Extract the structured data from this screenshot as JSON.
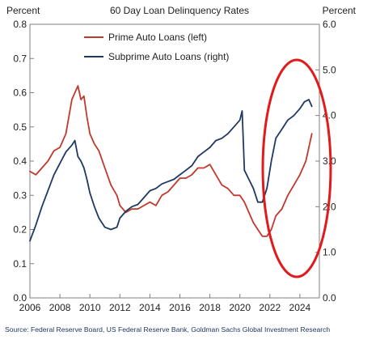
{
  "chart_data": {
    "type": "line",
    "title": "60 Day Loan Delinquency Rates",
    "left_axis_label": "Percent",
    "right_axis_label": "Percent",
    "xlim": [
      2006,
      2025.3
    ],
    "x_ticks": [
      "2006",
      "2008",
      "2010",
      "2012",
      "2014",
      "2016",
      "2018",
      "2020",
      "2022",
      "2024"
    ],
    "left_ylim": [
      0,
      0.8
    ],
    "left_ticks": [
      "0.0",
      "0.1",
      "0.2",
      "0.3",
      "0.4",
      "0.5",
      "0.6",
      "0.7",
      "0.8"
    ],
    "right_ylim": [
      0,
      6
    ],
    "right_ticks": [
      "0.0",
      "1.0",
      "2.0",
      "3.0",
      "4.0",
      "5.0",
      "6.0"
    ],
    "legend_position": "top-center",
    "grid": false,
    "series": [
      {
        "name": "Prime Auto Loans (left)",
        "axis": "left",
        "color": "#c0392b",
        "x": [
          2006.0,
          2006.4,
          2006.8,
          2007.2,
          2007.6,
          2008.0,
          2008.4,
          2008.8,
          2009.0,
          2009.2,
          2009.4,
          2009.6,
          2009.8,
          2010.0,
          2010.3,
          2010.6,
          2011.0,
          2011.4,
          2011.8,
          2012.0,
          2012.4,
          2012.8,
          2013.2,
          2013.6,
          2014.0,
          2014.4,
          2014.8,
          2015.2,
          2015.6,
          2016.0,
          2016.4,
          2016.8,
          2017.2,
          2017.6,
          2018.0,
          2018.4,
          2018.8,
          2019.2,
          2019.6,
          2020.0,
          2020.3,
          2020.6,
          2020.9,
          2021.2,
          2021.5,
          2021.8,
          2022.1,
          2022.4,
          2022.8,
          2023.2,
          2023.6,
          2024.0,
          2024.4,
          2024.8
        ],
        "values": [
          0.37,
          0.36,
          0.38,
          0.4,
          0.43,
          0.44,
          0.48,
          0.58,
          0.6,
          0.62,
          0.58,
          0.59,
          0.53,
          0.48,
          0.45,
          0.43,
          0.38,
          0.33,
          0.3,
          0.27,
          0.25,
          0.26,
          0.26,
          0.27,
          0.28,
          0.27,
          0.3,
          0.31,
          0.33,
          0.35,
          0.35,
          0.36,
          0.38,
          0.38,
          0.39,
          0.36,
          0.33,
          0.32,
          0.3,
          0.3,
          0.28,
          0.25,
          0.22,
          0.2,
          0.18,
          0.18,
          0.2,
          0.24,
          0.26,
          0.3,
          0.33,
          0.36,
          0.4,
          0.48
        ]
      },
      {
        "name": "Subprime Auto Loans (right)",
        "axis": "right",
        "color": "#1f3864",
        "x": [
          2006.0,
          2006.4,
          2006.8,
          2007.2,
          2007.6,
          2008.0,
          2008.4,
          2008.8,
          2009.0,
          2009.2,
          2009.4,
          2009.6,
          2009.8,
          2010.0,
          2010.3,
          2010.6,
          2011.0,
          2011.4,
          2011.8,
          2012.0,
          2012.4,
          2012.8,
          2013.2,
          2013.6,
          2014.0,
          2014.4,
          2014.8,
          2015.2,
          2015.6,
          2016.0,
          2016.4,
          2016.8,
          2017.2,
          2017.6,
          2018.0,
          2018.4,
          2018.8,
          2019.2,
          2019.6,
          2020.0,
          2020.15,
          2020.3,
          2020.6,
          2020.9,
          2021.2,
          2021.5,
          2021.8,
          2022.1,
          2022.4,
          2022.8,
          2023.2,
          2023.6,
          2024.0,
          2024.3,
          2024.6,
          2024.8
        ],
        "values": [
          1.25,
          1.6,
          2.0,
          2.35,
          2.7,
          2.95,
          3.2,
          3.35,
          3.45,
          3.1,
          3.0,
          2.85,
          2.6,
          2.3,
          2.0,
          1.75,
          1.55,
          1.5,
          1.55,
          1.75,
          1.9,
          2.0,
          2.05,
          2.2,
          2.35,
          2.4,
          2.5,
          2.55,
          2.6,
          2.7,
          2.8,
          2.9,
          3.1,
          3.2,
          3.3,
          3.45,
          3.5,
          3.6,
          3.75,
          3.9,
          4.1,
          2.8,
          2.6,
          2.4,
          2.1,
          2.1,
          2.4,
          3.0,
          3.5,
          3.7,
          3.9,
          4.0,
          4.15,
          4.3,
          4.35,
          4.2
        ]
      }
    ]
  },
  "source_text": "Source: Federal Reserve Board, US Federal Reserve Bank, Goldman Sachs Global Investment Research"
}
